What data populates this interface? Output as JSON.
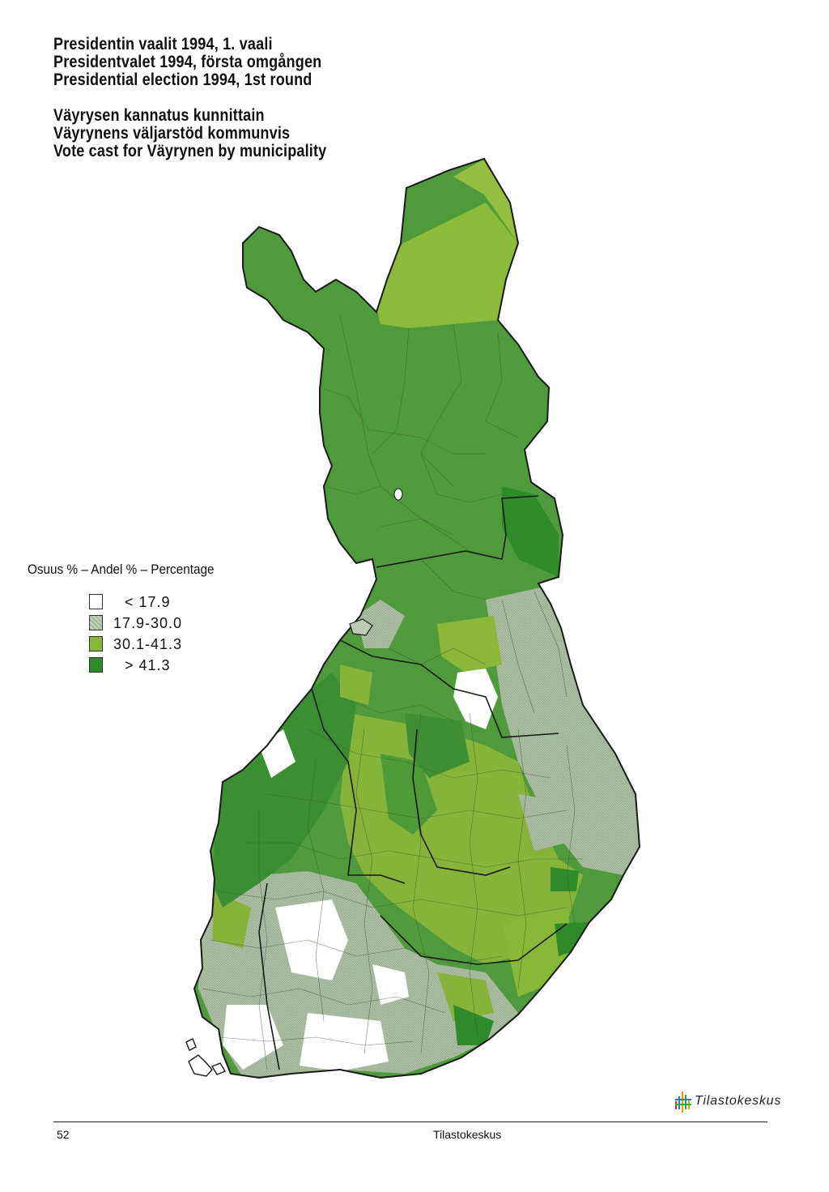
{
  "titles": {
    "line1": "Presidentin vaalit 1994, 1. vaali",
    "line2": "Presidentvalet 1994, första omgången",
    "line3": "Presidential election 1994, 1st round",
    "line4": "Väyrysen kannatus kunnittain",
    "line5": "Väyrynens väljarstöd kommunvis",
    "line6": "Vote cast for Väyrynen by municipality"
  },
  "legend": {
    "title": "Osuus % – Andel % – Percentage",
    "classes": [
      {
        "label": "< 17.9",
        "color": "#ffffff"
      },
      {
        "label": "17.9-30.0",
        "color": "#a4b89a"
      },
      {
        "label": "30.1-41.3",
        "color": "#88b838"
      },
      {
        "label": "> 41.3",
        "color": "#2f8a2a"
      }
    ]
  },
  "logo": {
    "text": "Tilastokeskus",
    "icon": "tilastokeskus-logo-icon"
  },
  "footer": {
    "page_number": "52",
    "publisher": "Tilastokeskus"
  }
}
